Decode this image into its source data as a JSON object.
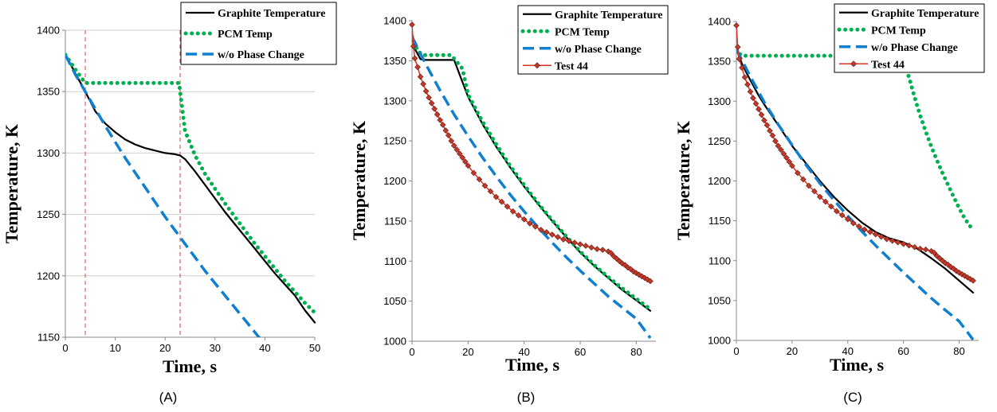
{
  "chart_data": [
    {
      "type": "line",
      "panel_label": "(A)",
      "xlabel": "Time, s",
      "ylabel": "Temperature, K",
      "xlim": [
        0,
        50
      ],
      "ylim": [
        1150,
        1400
      ],
      "xticks": [
        0,
        10,
        20,
        30,
        40,
        50
      ],
      "yticks": [
        1150,
        1200,
        1250,
        1300,
        1350,
        1400
      ],
      "grid": "horizontal",
      "legend": "top-right",
      "vlines": [
        4,
        23
      ],
      "series": [
        {
          "name": "Graphite Temperature",
          "color": "#000000",
          "style": "solid",
          "x": [
            0,
            2,
            4,
            6,
            8,
            10,
            12,
            14,
            16,
            18,
            20,
            22,
            23,
            24,
            26,
            28,
            30,
            32,
            34,
            36,
            38,
            40,
            42,
            44,
            46,
            48,
            50
          ],
          "y": [
            1380,
            1365,
            1350,
            1334,
            1324,
            1317,
            1311,
            1307,
            1304,
            1302,
            1300,
            1299,
            1298,
            1295,
            1285,
            1274,
            1263,
            1252,
            1242,
            1232,
            1222,
            1212,
            1202,
            1193,
            1184,
            1172,
            1162
          ]
        },
        {
          "name": "PCM Temp",
          "color": "#00B050",
          "style": "dotted",
          "x": [
            0,
            2,
            4,
            6,
            10,
            15,
            20,
            22.8,
            23.3,
            24,
            26,
            28,
            30,
            32,
            34,
            36,
            38,
            40,
            42,
            44,
            46,
            48,
            50
          ],
          "y": [
            1380,
            1368,
            1357,
            1357,
            1357,
            1357,
            1357,
            1357,
            1340,
            1318,
            1298,
            1283,
            1271,
            1259,
            1248,
            1237,
            1226,
            1216,
            1206,
            1196,
            1187,
            1178,
            1170
          ]
        },
        {
          "name": "w/o Phase Change",
          "color": "#0F7FD0",
          "style": "dashed",
          "x": [
            0,
            2,
            4,
            6,
            8,
            10,
            12,
            14,
            16,
            18,
            20,
            22,
            24,
            26,
            28,
            30,
            32,
            34,
            36,
            38,
            39
          ],
          "y": [
            1380,
            1364,
            1350,
            1336,
            1322,
            1309,
            1296,
            1284,
            1272,
            1260,
            1248,
            1237,
            1226,
            1215,
            1204,
            1194,
            1184,
            1174,
            1164,
            1154,
            1149
          ]
        }
      ]
    },
    {
      "type": "line",
      "panel_label": "(B)",
      "xlabel": "Time, s",
      "ylabel": "Temperature, K",
      "xlim": [
        0,
        87
      ],
      "ylim": [
        1000,
        1400
      ],
      "xticks": [
        0,
        20,
        40,
        60,
        80
      ],
      "yticks": [
        1000,
        1050,
        1100,
        1150,
        1200,
        1250,
        1300,
        1350,
        1400
      ],
      "grid": "none",
      "legend": "top-right",
      "vlines": [],
      "series": [
        {
          "name": "Graphite Temperature",
          "color": "#000000",
          "style": "solid",
          "x": [
            0,
            1,
            3,
            5,
            10,
            15,
            20,
            25,
            30,
            35,
            40,
            45,
            50,
            55,
            60,
            65,
            70,
            75,
            80,
            85
          ],
          "y": [
            1380,
            1365,
            1352,
            1351,
            1351,
            1351,
            1305,
            1272,
            1243,
            1217,
            1193,
            1171,
            1150,
            1130,
            1111,
            1094,
            1079,
            1064,
            1051,
            1038
          ]
        },
        {
          "name": "PCM Temp",
          "color": "#00B050",
          "style": "dotted",
          "x": [
            0,
            2,
            4,
            8,
            14,
            18,
            20,
            25,
            30,
            35,
            40,
            45,
            50,
            55,
            60,
            65,
            70,
            75,
            80,
            85
          ],
          "y": [
            1380,
            1362,
            1357,
            1357,
            1357,
            1340,
            1308,
            1275,
            1246,
            1219,
            1195,
            1172,
            1151,
            1131,
            1112,
            1095,
            1080,
            1066,
            1053,
            1040
          ]
        },
        {
          "name": "w/o Phase Change",
          "color": "#0F7FD0",
          "style": "dashed",
          "x": [
            0,
            5,
            10,
            15,
            20,
            25,
            30,
            35,
            40,
            45,
            50,
            55,
            60,
            65,
            70,
            75,
            80,
            85
          ],
          "y": [
            1380,
            1345,
            1313,
            1283,
            1256,
            1230,
            1206,
            1183,
            1162,
            1142,
            1123,
            1105,
            1088,
            1072,
            1056,
            1042,
            1028,
            1004
          ]
        },
        {
          "name": "Test 44",
          "color": "#E0301E",
          "style": "diamond",
          "x": [
            0,
            0.5,
            1,
            2,
            3,
            4,
            5,
            6,
            7,
            8,
            9,
            10,
            11,
            12,
            13,
            14,
            15,
            16,
            17,
            18,
            19,
            20,
            22,
            24,
            26,
            28,
            30,
            32,
            34,
            36,
            38,
            40,
            42,
            44,
            46,
            48,
            50,
            52,
            54,
            56,
            58,
            60,
            62,
            64,
            66,
            68,
            70,
            71,
            72,
            73,
            74,
            75,
            76,
            77,
            78,
            79,
            80,
            81,
            82,
            83,
            84,
            85
          ],
          "y": [
            1395,
            1368,
            1353,
            1342,
            1330,
            1321,
            1312,
            1304,
            1297,
            1290,
            1283,
            1276,
            1270,
            1263,
            1257,
            1250,
            1244,
            1239,
            1234,
            1229,
            1224,
            1219,
            1210,
            1202,
            1194,
            1187,
            1180,
            1174,
            1168,
            1162,
            1157,
            1152,
            1147,
            1143,
            1139,
            1136,
            1133,
            1130,
            1127,
            1125,
            1123,
            1121,
            1119,
            1117,
            1115,
            1114,
            1112,
            1110,
            1106,
            1103,
            1100,
            1097,
            1095,
            1092,
            1090,
            1087,
            1085,
            1083,
            1081,
            1079,
            1077,
            1075
          ]
        }
      ]
    },
    {
      "type": "line",
      "panel_label": "(C)",
      "xlabel": "Time, s",
      "ylabel": "Temperature, K",
      "xlim": [
        0,
        87
      ],
      "ylim": [
        1000,
        1400
      ],
      "xticks": [
        0,
        20,
        40,
        60,
        80
      ],
      "yticks": [
        1000,
        1050,
        1100,
        1150,
        1200,
        1250,
        1300,
        1350,
        1400
      ],
      "grid": "none",
      "legend": "top-right",
      "vlines": [],
      "series": [
        {
          "name": "Graphite Temperature",
          "color": "#000000",
          "style": "solid",
          "x": [
            0,
            2,
            4,
            6,
            8,
            10,
            15,
            20,
            25,
            30,
            35,
            40,
            45,
            50,
            55,
            60,
            65,
            70,
            75,
            80,
            85
          ],
          "y": [
            1365,
            1347,
            1333,
            1320,
            1307,
            1296,
            1270,
            1244,
            1222,
            1200,
            1180,
            1163,
            1148,
            1136,
            1128,
            1123,
            1115,
            1103,
            1090,
            1075,
            1060
          ]
        },
        {
          "name": "PCM Temp",
          "color": "#00B050",
          "style": "dotted",
          "x": [
            0,
            1,
            2,
            4,
            10,
            20,
            30,
            40,
            50,
            58,
            60,
            62,
            64,
            66,
            68,
            70,
            72,
            74,
            76,
            78,
            80,
            82,
            85
          ],
          "y": [
            1365,
            1360,
            1357,
            1357,
            1357,
            1357,
            1357,
            1357,
            1357,
            1357,
            1350,
            1330,
            1305,
            1282,
            1262,
            1243,
            1226,
            1210,
            1195,
            1180,
            1166,
            1153,
            1138
          ]
        },
        {
          "name": "w/o Phase Change",
          "color": "#0F7FD0",
          "style": "dashed",
          "x": [
            0,
            5,
            10,
            15,
            20,
            25,
            30,
            35,
            40,
            45,
            50,
            55,
            60,
            65,
            70,
            75,
            80,
            85
          ],
          "y": [
            1365,
            1331,
            1299,
            1271,
            1245,
            1220,
            1197,
            1176,
            1156,
            1137,
            1119,
            1102,
            1085,
            1069,
            1053,
            1038,
            1024,
            1001
          ]
        },
        {
          "name": "Test 44",
          "color": "#E0301E",
          "style": "diamond",
          "x": [
            0,
            0.5,
            1,
            2,
            3,
            4,
            5,
            6,
            7,
            8,
            9,
            10,
            11,
            12,
            13,
            14,
            15,
            16,
            17,
            18,
            19,
            20,
            22,
            24,
            26,
            28,
            30,
            32,
            34,
            36,
            38,
            40,
            42,
            44,
            46,
            48,
            50,
            52,
            54,
            56,
            58,
            60,
            62,
            64,
            66,
            68,
            70,
            71,
            72,
            73,
            74,
            75,
            76,
            77,
            78,
            79,
            80,
            81,
            82,
            83,
            84,
            85
          ],
          "y": [
            1395,
            1368,
            1353,
            1342,
            1330,
            1321,
            1312,
            1304,
            1297,
            1290,
            1283,
            1276,
            1270,
            1263,
            1257,
            1250,
            1244,
            1239,
            1234,
            1229,
            1224,
            1219,
            1210,
            1202,
            1194,
            1187,
            1180,
            1174,
            1168,
            1162,
            1157,
            1152,
            1147,
            1143,
            1139,
            1136,
            1133,
            1130,
            1127,
            1125,
            1123,
            1121,
            1119,
            1117,
            1115,
            1114,
            1112,
            1110,
            1106,
            1103,
            1100,
            1097,
            1095,
            1092,
            1090,
            1087,
            1085,
            1083,
            1081,
            1079,
            1077,
            1075
          ]
        }
      ]
    }
  ]
}
